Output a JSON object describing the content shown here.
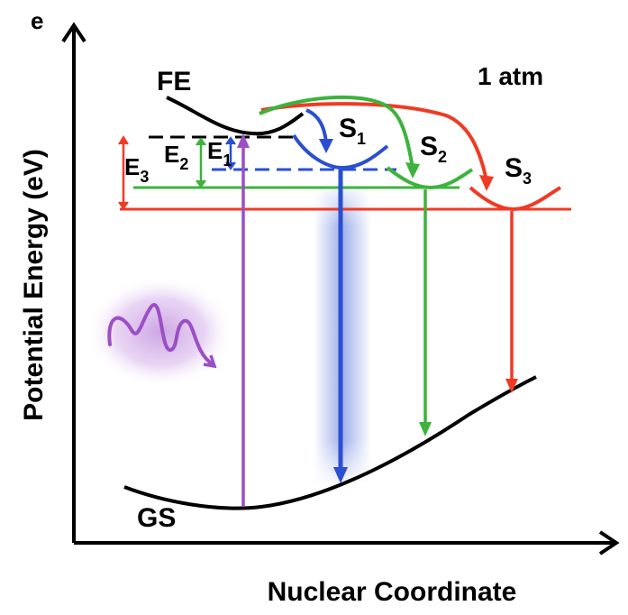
{
  "axes": {
    "y_label": "Potential Energy (eV)",
    "x_label": "Nuclear Coordinate",
    "y_axis_tip_label": "e"
  },
  "condition": "1 atm",
  "states": {
    "fe": "FE",
    "gs": "GS",
    "s1": {
      "base": "S",
      "sub": "1"
    },
    "s2": {
      "base": "S",
      "sub": "2"
    },
    "s3": {
      "base": "S",
      "sub": "3"
    }
  },
  "energies": {
    "e1": {
      "base": "E",
      "sub": "1"
    },
    "e2": {
      "base": "E",
      "sub": "2"
    },
    "e3": {
      "base": "E",
      "sub": "3"
    }
  },
  "colors": {
    "excitation": "#9b4fc4",
    "s1": "#2a4fd0",
    "s2": "#3cb33c",
    "s3": "#f03a24",
    "curve": "#000000",
    "photon_glow": "#c79be0"
  }
}
